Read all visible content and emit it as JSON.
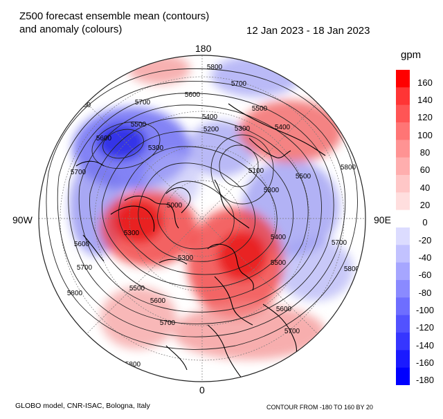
{
  "header": {
    "title_line1": "Z500 forecast ensemble mean (contours)",
    "title_line2": "and anomaly (colours)",
    "date_range": "12 Jan 2023 - 18 Jan 2023"
  },
  "map": {
    "projection": "north polar stereographic",
    "lon_labels": {
      "top": "180",
      "left": "90W",
      "right": "90E",
      "bottom": "0"
    },
    "contour_labels": [
      "5800",
      "5700",
      "5600",
      "5500",
      "5400",
      "5300",
      "5200",
      "5100",
      "5000"
    ],
    "anomaly_regions": [
      {
        "area": "North Pacific / Aleutians",
        "sign": "negative"
      },
      {
        "area": "Canada / Hudson Bay",
        "sign": "positive"
      },
      {
        "area": "Eastern Siberia",
        "sign": "positive"
      },
      {
        "area": "Europe / Scandinavia",
        "sign": "positive"
      },
      {
        "area": "Central Asia",
        "sign": "negative"
      },
      {
        "area": "Mid-latitude Atlantic",
        "sign": "positive"
      }
    ]
  },
  "colorbar": {
    "unit": "gpm",
    "labels": [
      "180",
      "160",
      "140",
      "120",
      "100",
      "80",
      "60",
      "40",
      "20",
      "0",
      "-20",
      "-40",
      "-60",
      "-80",
      "-100",
      "-120",
      "-140",
      "-160",
      "-180"
    ],
    "colors": [
      "#ff0000",
      "#ff3535",
      "#ff5555",
      "#ff7575",
      "#ff9393",
      "#ffaeae",
      "#ffc7c7",
      "#ffdede",
      "#ffffff",
      "#ffffff",
      "#dcdcff",
      "#c2c2ff",
      "#a6a6ff",
      "#8a8aff",
      "#6e6eff",
      "#5252ff",
      "#3636ff",
      "#1a1aff",
      "#0000ff"
    ]
  },
  "footer": {
    "left": "GLOBO model, CNR-ISAC, Bologna, Italy",
    "right": "CONTOUR FROM -180 TO 160 BY 20"
  }
}
